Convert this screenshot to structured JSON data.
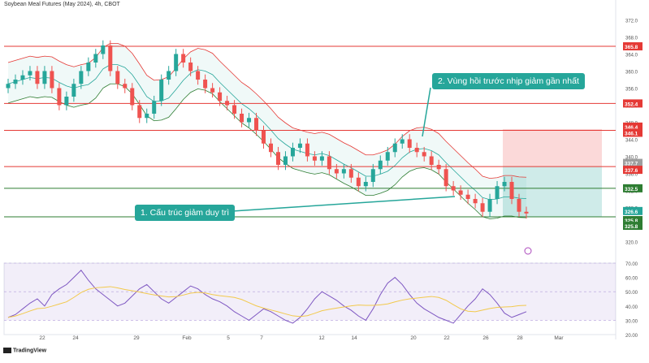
{
  "header": {
    "title": "Soybean Meal Futures (May 2024), 4h, CBOT"
  },
  "callouts": {
    "c1": "1. Cấu trúc giảm duy trì",
    "c2": "2. Vùng hồi trước nhịp giảm gần nhất"
  },
  "x_axis": {
    "labels": [
      "22",
      "24",
      "29",
      "Feb",
      "5",
      "7",
      "12",
      "14",
      "20",
      "22",
      "26",
      "28",
      "Mar"
    ]
  },
  "price_axis": {
    "ticks": [
      "372.0",
      "368.0",
      "364.0",
      "360.0",
      "356.0",
      "352.0",
      "348.0",
      "344.0",
      "340.0",
      "336.0",
      "332.0",
      "328.0",
      "324.0",
      "320.0"
    ],
    "markers": [
      {
        "label": "365.8",
        "color": "#e53935"
      },
      {
        "label": "352.4",
        "color": "#e53935"
      },
      {
        "label": "346.4",
        "color": "#e53935"
      },
      {
        "label": "346.1",
        "color": "#e53935"
      },
      {
        "label": "337.7",
        "color": "#9e9e9e"
      },
      {
        "label": "337.6",
        "color": "#e53935"
      },
      {
        "label": "332.5",
        "color": "#2e7d32"
      },
      {
        "label": "326.6",
        "color": "#26a69a"
      },
      {
        "label": "325.8",
        "color": "#2e7d32"
      },
      {
        "label": "325.8",
        "color": "#2e7d32"
      }
    ]
  },
  "rsi_axis": {
    "ticks": [
      "70.00",
      "60.00",
      "50.00",
      "40.00",
      "30.00",
      "20.00"
    ]
  },
  "branding": {
    "logo": "TradingView"
  },
  "colors": {
    "bull": "#26a69a",
    "bear": "#ef5350",
    "resistance": "#e53935",
    "support": "#2e7d32",
    "bb": "#e53935",
    "ma": "#26a69a",
    "rsi": "#7e57c2"
  },
  "chart_data": {
    "type": "candlestick",
    "title": "Soybean Meal Futures (May 2024), 4h, CBOT",
    "xlabel": "",
    "ylabel": "",
    "ylim": [
      318,
      374
    ],
    "horizontal_levels": [
      {
        "value": 365.8,
        "color": "#e53935"
      },
      {
        "value": 352.4,
        "color": "#e53935"
      },
      {
        "value": 346.1,
        "color": "#e53935"
      },
      {
        "value": 337.6,
        "color": "#e53935"
      },
      {
        "value": 332.5,
        "color": "#2e7d32"
      },
      {
        "value": 325.8,
        "color": "#2e7d32"
      }
    ],
    "position_tool": {
      "entry": 337.7,
      "stop": 346.4,
      "target": 325.8
    },
    "close_series": [
      357,
      358,
      359,
      360,
      357,
      360,
      356,
      352,
      354,
      357,
      360,
      362,
      364,
      366,
      360,
      357,
      356,
      352,
      349,
      350,
      353,
      358,
      360,
      364,
      362,
      360,
      358,
      356,
      355,
      353,
      352,
      350,
      348,
      349,
      346,
      343,
      341,
      338,
      340,
      342,
      343,
      340,
      339,
      340,
      337,
      336,
      337,
      335,
      333,
      334,
      337,
      339,
      341,
      343,
      344,
      342,
      341,
      340,
      338,
      337,
      333,
      332,
      331,
      330,
      329,
      327,
      330,
      333,
      334,
      330,
      327,
      326.6
    ],
    "rsi": {
      "ylim": [
        20,
        70
      ],
      "values": [
        32,
        34,
        38,
        42,
        45,
        40,
        48,
        52,
        55,
        60,
        65,
        58,
        52,
        48,
        44,
        40,
        42,
        47,
        52,
        55,
        50,
        45,
        42,
        46,
        50,
        54,
        52,
        48,
        45,
        43,
        40,
        36,
        33,
        30,
        34,
        38,
        36,
        33,
        30,
        28,
        32,
        38,
        45,
        50,
        47,
        44,
        40,
        37,
        33,
        30,
        38,
        48,
        56,
        60,
        55,
        48,
        42,
        38,
        35,
        32,
        30,
        28,
        34,
        40,
        45,
        52,
        48,
        42,
        35,
        32,
        34,
        36
      ]
    }
  }
}
